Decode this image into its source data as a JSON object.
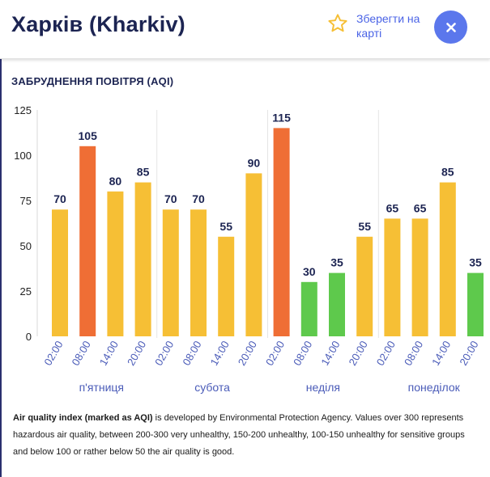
{
  "header": {
    "city_title": "Харків (Kharkiv)",
    "save_label": "Зберегти на карті",
    "save_icon": "star-outline-icon",
    "close_icon": "close-icon"
  },
  "section_title": "ЗАБРУДНЕННЯ ПОВІТРЯ (AQI)",
  "colors": {
    "good": "#5ec94c",
    "moderate": "#f6bf35",
    "unhealthy_sensitive": "#ef6e35",
    "accent": "#5b77ec",
    "title": "#1c2452"
  },
  "chart_data": {
    "type": "bar",
    "ylim": [
      0,
      125
    ],
    "yticks": [
      0,
      25,
      50,
      75,
      100,
      125
    ],
    "grid": "vertical day separators",
    "categories": [
      "02:00",
      "08:00",
      "14:00",
      "20:00",
      "02:00",
      "08:00",
      "14:00",
      "20:00",
      "02:00",
      "08:00",
      "14:00",
      "20:00",
      "02:00",
      "08:00",
      "14:00",
      "20:00"
    ],
    "values": [
      70,
      105,
      80,
      85,
      70,
      70,
      55,
      90,
      115,
      30,
      35,
      55,
      65,
      65,
      85,
      35
    ],
    "days": [
      "п'ятниця",
      "субота",
      "неділя",
      "понеділок"
    ]
  },
  "footnote": {
    "bold": "Air quality index (marked as AQI)",
    "text": " is developed by Environmental Protection Agency. Values over 300 represents hazardous air quality, between 200-300 very unhealthy, 150-200 unhealthy, 100-150 unhealthy for sensitive groups and below 100 or rather below 50 the air quality is good."
  }
}
